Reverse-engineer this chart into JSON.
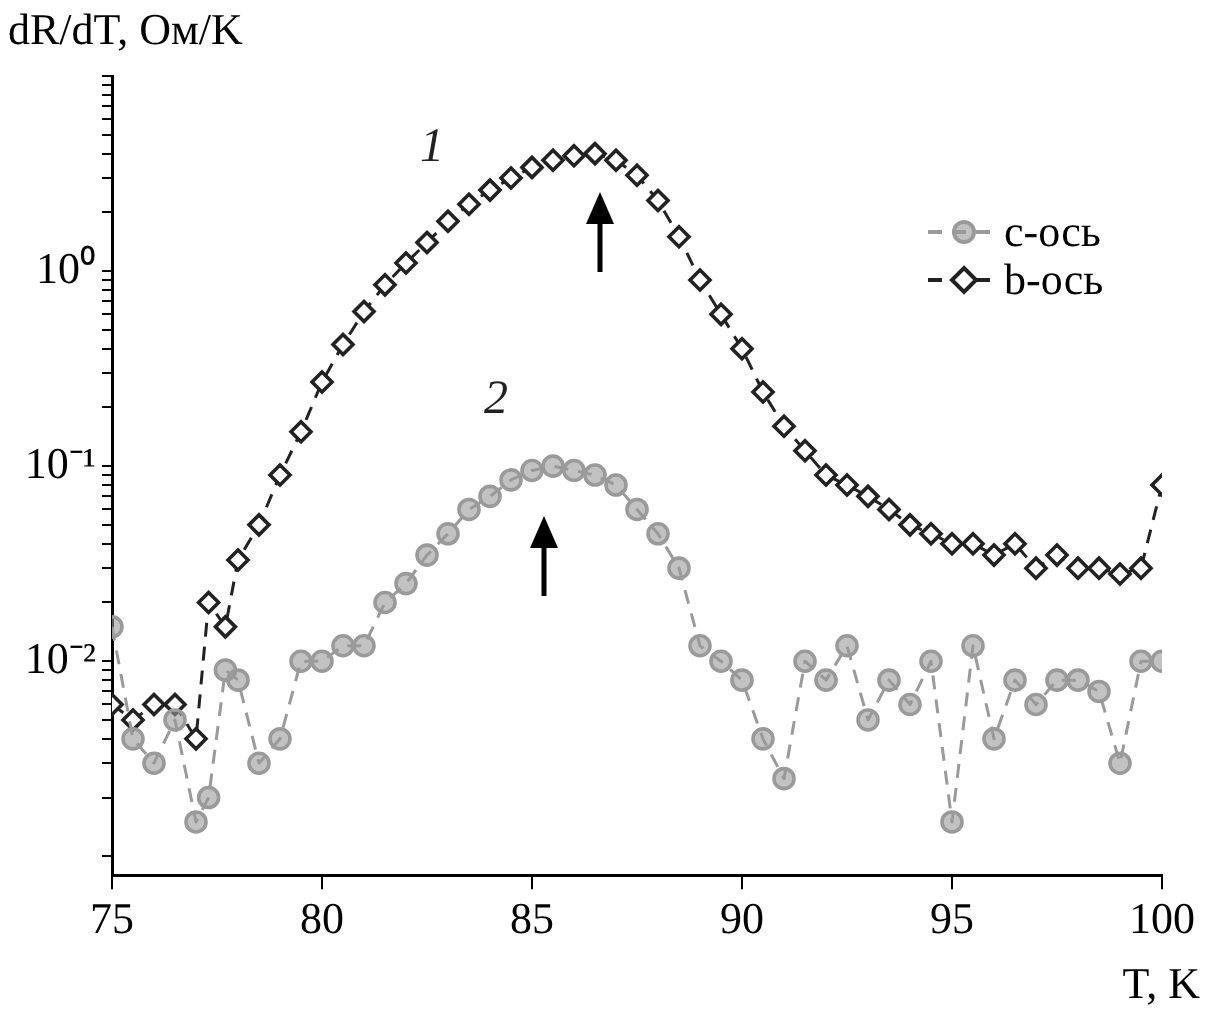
{
  "chart_data": {
    "type": "line",
    "xlabel": "T, K",
    "ylabel": "dR/dT, Ом/K",
    "log": "y",
    "grid": false,
    "legend": "top right",
    "line_style": "dashed",
    "xlim": [
      75,
      100
    ],
    "xticks": [
      75,
      80,
      85,
      90,
      95,
      100
    ],
    "ylim": [
      0.0008,
      10
    ],
    "yticks": [
      {
        "value": 0.001,
        "label": null
      },
      {
        "value": 0.002,
        "label": null
      },
      {
        "value": 0.003,
        "label": null
      },
      {
        "value": 0.004,
        "label": null
      },
      {
        "value": 0.005,
        "label": null
      },
      {
        "value": 0.006,
        "label": null
      },
      {
        "value": 0.007,
        "label": null
      },
      {
        "value": 0.008,
        "label": null
      },
      {
        "value": 0.009,
        "label": null
      },
      {
        "value": 0.01,
        "label": "10⁻²"
      },
      {
        "value": 0.02,
        "label": null
      },
      {
        "value": 0.03,
        "label": null
      },
      {
        "value": 0.04,
        "label": null
      },
      {
        "value": 0.05,
        "label": null
      },
      {
        "value": 0.06,
        "label": null
      },
      {
        "value": 0.07,
        "label": null
      },
      {
        "value": 0.08,
        "label": null
      },
      {
        "value": 0.09,
        "label": null
      },
      {
        "value": 0.1,
        "label": "10⁻¹"
      },
      {
        "value": 0.2,
        "label": null
      },
      {
        "value": 0.3,
        "label": null
      },
      {
        "value": 0.4,
        "label": null
      },
      {
        "value": 0.5,
        "label": null
      },
      {
        "value": 0.6,
        "label": null
      },
      {
        "value": 0.7,
        "label": null
      },
      {
        "value": 0.8,
        "label": null
      },
      {
        "value": 0.9,
        "label": null
      },
      {
        "value": 1,
        "label": "10⁰"
      },
      {
        "value": 2,
        "label": null
      },
      {
        "value": 3,
        "label": null
      },
      {
        "value": 4,
        "label": null
      },
      {
        "value": 5,
        "label": null
      },
      {
        "value": 6,
        "label": null
      },
      {
        "value": 7,
        "label": null
      },
      {
        "value": 8,
        "label": null
      },
      {
        "value": 9,
        "label": null
      },
      {
        "value": 10,
        "label": null
      }
    ],
    "x": [
      75,
      75.5,
      76,
      76.5,
      77,
      77.3,
      77.7,
      78,
      78.5,
      79,
      79.5,
      80,
      80.5,
      81,
      81.5,
      82,
      82.5,
      83,
      83.5,
      84,
      84.5,
      85,
      85.5,
      86,
      86.5,
      87,
      87.5,
      88,
      88.5,
      89,
      89.5,
      90,
      90.5,
      91,
      91.5,
      92,
      92.5,
      93,
      93.5,
      94,
      94.5,
      95,
      95.5,
      96,
      96.5,
      97,
      97.5,
      98,
      98.5,
      99,
      99.5,
      100
    ],
    "series": [
      {
        "name": "c-ось",
        "color": "#9a9a9a",
        "marker": "circle",
        "values": [
          0.015,
          0.004,
          0.003,
          0.005,
          0.0015,
          0.002,
          0.009,
          0.008,
          0.003,
          0.004,
          0.01,
          0.01,
          0.012,
          0.012,
          0.02,
          0.025,
          0.035,
          0.045,
          0.06,
          0.07,
          0.085,
          0.095,
          0.1,
          0.095,
          0.09,
          0.08,
          0.06,
          0.045,
          0.03,
          0.012,
          0.01,
          0.008,
          0.004,
          0.0025,
          0.01,
          0.008,
          0.012,
          0.005,
          0.008,
          0.006,
          0.01,
          0.0015,
          0.012,
          0.004,
          0.008,
          0.006,
          0.008,
          0.008,
          0.007,
          0.003,
          0.01,
          0.01
        ]
      },
      {
        "name": "b-ось",
        "color": "#222222",
        "marker": "diamond",
        "values": [
          0.006,
          0.005,
          0.006,
          0.006,
          0.004,
          0.02,
          0.015,
          0.033,
          0.05,
          0.09,
          0.15,
          0.27,
          0.42,
          0.62,
          0.85,
          1.1,
          1.4,
          1.8,
          2.2,
          2.6,
          3.0,
          3.4,
          3.7,
          3.9,
          4.0,
          3.7,
          3.1,
          2.3,
          1.5,
          0.9,
          0.6,
          0.4,
          0.24,
          0.16,
          0.12,
          0.09,
          0.08,
          0.07,
          0.06,
          0.05,
          0.045,
          0.04,
          0.04,
          0.035,
          0.04,
          0.03,
          0.035,
          0.03,
          0.03,
          0.028,
          0.03,
          0.08
        ]
      }
    ],
    "annotations": [
      "1",
      "2"
    ]
  }
}
